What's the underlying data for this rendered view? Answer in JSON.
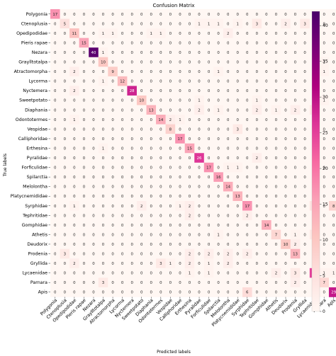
{
  "chart_data": {
    "type": "heatmap",
    "title": "Confusion Matrix",
    "xlabel": "Predicted labels",
    "ylabel": "True labels",
    "labels": [
      "Polygonia",
      "Ctenoplusia",
      "Opedipodidae",
      "Pieris rapae",
      "Nezara",
      "Graylltotalpa",
      "Atractomorpha",
      "Lycorma",
      "Nyctemera",
      "Sweetpotato",
      "Diaphania",
      "Odontotermes",
      "Vespidae",
      "Calliphoridae",
      "Erthesina",
      "Pyralidae",
      "Forficulidae",
      "Spilarctia",
      "Melolontha",
      "Platycnemididae",
      "Syrphidae",
      "Tephritidae",
      "Gomphidae",
      "Athetis",
      "Deudorix",
      "Prodenia",
      "Gryllida",
      "Lycaenidae",
      "Parnara",
      "Apis"
    ],
    "matrix": [
      [
        17,
        0,
        0,
        0,
        0,
        0,
        0,
        0,
        0,
        0,
        0,
        0,
        0,
        0,
        0,
        0,
        0,
        0,
        0,
        0,
        0,
        0,
        0,
        0,
        0,
        0,
        0,
        0,
        0,
        0
      ],
      [
        0,
        5,
        0,
        0,
        0,
        0,
        0,
        0,
        0,
        0,
        0,
        0,
        0,
        0,
        0,
        1,
        1,
        1,
        0,
        1,
        0,
        3,
        0,
        0,
        2,
        0,
        3,
        0,
        0,
        0
      ],
      [
        0,
        0,
        11,
        0,
        0,
        1,
        1,
        0,
        0,
        0,
        1,
        1,
        0,
        0,
        0,
        0,
        0,
        0,
        2,
        0,
        0,
        0,
        0,
        0,
        0,
        0,
        0,
        0,
        0,
        0
      ],
      [
        0,
        0,
        0,
        15,
        0,
        0,
        0,
        0,
        0,
        0,
        0,
        0,
        0,
        0,
        0,
        0,
        0,
        0,
        0,
        0,
        0,
        0,
        0,
        0,
        0,
        0,
        0,
        0,
        0,
        0
      ],
      [
        0,
        0,
        0,
        0,
        40,
        1,
        0,
        0,
        0,
        0,
        0,
        0,
        0,
        0,
        0,
        0,
        0,
        0,
        0,
        0,
        0,
        0,
        0,
        0,
        0,
        0,
        0,
        0,
        0,
        0
      ],
      [
        0,
        0,
        0,
        0,
        0,
        10,
        0,
        0,
        0,
        0,
        0,
        0,
        0,
        0,
        0,
        0,
        0,
        0,
        0,
        0,
        0,
        0,
        0,
        0,
        0,
        0,
        0,
        0,
        1,
        0
      ],
      [
        0,
        0,
        2,
        0,
        0,
        0,
        9,
        0,
        0,
        0,
        0,
        0,
        0,
        0,
        0,
        0,
        0,
        1,
        0,
        0,
        0,
        0,
        0,
        0,
        0,
        0,
        0,
        0,
        1,
        0
      ],
      [
        0,
        0,
        0,
        0,
        0,
        1,
        0,
        12,
        0,
        0,
        0,
        0,
        0,
        0,
        0,
        0,
        0,
        0,
        0,
        0,
        0,
        0,
        0,
        0,
        0,
        0,
        0,
        0,
        0,
        0
      ],
      [
        0,
        0,
        2,
        0,
        0,
        0,
        0,
        0,
        28,
        0,
        0,
        0,
        0,
        0,
        0,
        0,
        0,
        0,
        0,
        0,
        0,
        0,
        0,
        0,
        0,
        0,
        0,
        0,
        0,
        0
      ],
      [
        0,
        0,
        0,
        0,
        0,
        0,
        0,
        0,
        0,
        10,
        0,
        0,
        0,
        0,
        0,
        1,
        0,
        0,
        0,
        0,
        0,
        1,
        0,
        0,
        0,
        0,
        0,
        0,
        1,
        0
      ],
      [
        0,
        0,
        0,
        0,
        0,
        0,
        0,
        0,
        0,
        0,
        13,
        0,
        0,
        0,
        0,
        2,
        0,
        1,
        0,
        0,
        0,
        2,
        0,
        1,
        0,
        2,
        0,
        3,
        0,
        0
      ],
      [
        0,
        0,
        1,
        0,
        0,
        0,
        0,
        0,
        0,
        0,
        0,
        14,
        2,
        1,
        0,
        0,
        0,
        0,
        0,
        0,
        0,
        0,
        0,
        0,
        0,
        0,
        0,
        0,
        0,
        0
      ],
      [
        0,
        0,
        0,
        0,
        0,
        0,
        0,
        0,
        0,
        0,
        0,
        0,
        8,
        0,
        0,
        0,
        0,
        0,
        0,
        3,
        0,
        0,
        0,
        0,
        0,
        0,
        0,
        0,
        0,
        0
      ],
      [
        0,
        0,
        0,
        0,
        0,
        0,
        0,
        0,
        0,
        0,
        0,
        0,
        0,
        17,
        0,
        0,
        0,
        0,
        0,
        0,
        0,
        0,
        0,
        0,
        0,
        0,
        0,
        0,
        0,
        0
      ],
      [
        0,
        0,
        0,
        0,
        0,
        1,
        0,
        0,
        0,
        0,
        0,
        0,
        0,
        0,
        15,
        0,
        0,
        0,
        0,
        0,
        0,
        0,
        0,
        0,
        0,
        0,
        0,
        0,
        0,
        0
      ],
      [
        0,
        0,
        0,
        0,
        0,
        0,
        0,
        0,
        0,
        0,
        0,
        0,
        0,
        0,
        0,
        26,
        0,
        0,
        0,
        0,
        0,
        2,
        0,
        0,
        0,
        0,
        0,
        0,
        0,
        0
      ],
      [
        0,
        0,
        0,
        0,
        0,
        0,
        0,
        0,
        0,
        0,
        0,
        0,
        0,
        0,
        0,
        0,
        17,
        0,
        1,
        1,
        0,
        0,
        0,
        0,
        0,
        0,
        0,
        0,
        0,
        0
      ],
      [
        0,
        0,
        0,
        0,
        0,
        0,
        0,
        0,
        0,
        0,
        0,
        0,
        0,
        0,
        0,
        0,
        0,
        16,
        0,
        0,
        0,
        0,
        0,
        0,
        0,
        0,
        0,
        0,
        0,
        0
      ],
      [
        0,
        0,
        0,
        0,
        0,
        0,
        0,
        0,
        0,
        0,
        0,
        0,
        0,
        0,
        0,
        0,
        0,
        0,
        14,
        0,
        0,
        0,
        0,
        0,
        0,
        0,
        0,
        0,
        0,
        0
      ],
      [
        0,
        0,
        0,
        0,
        0,
        0,
        0,
        0,
        0,
        0,
        0,
        0,
        0,
        0,
        0,
        0,
        0,
        0,
        0,
        13,
        0,
        0,
        0,
        0,
        0,
        0,
        0,
        0,
        0,
        0
      ],
      [
        0,
        0,
        1,
        0,
        0,
        0,
        0,
        0,
        0,
        2,
        0,
        0,
        0,
        1,
        2,
        0,
        0,
        0,
        0,
        0,
        17,
        0,
        0,
        0,
        0,
        0,
        0,
        4,
        0,
        8
      ],
      [
        0,
        0,
        0,
        0,
        0,
        0,
        0,
        0,
        0,
        0,
        0,
        0,
        0,
        0,
        2,
        0,
        0,
        0,
        0,
        0,
        2,
        0,
        0,
        0,
        0,
        0,
        0,
        0,
        0,
        0
      ],
      [
        0,
        0,
        0,
        0,
        0,
        0,
        0,
        0,
        0,
        0,
        0,
        0,
        0,
        0,
        0,
        0,
        0,
        0,
        0,
        0,
        0,
        0,
        14,
        0,
        0,
        0,
        0,
        0,
        0,
        0
      ],
      [
        0,
        0,
        0,
        0,
        0,
        0,
        0,
        0,
        0,
        0,
        0,
        0,
        0,
        0,
        0,
        0,
        0,
        1,
        0,
        0,
        0,
        0,
        0,
        7,
        0,
        1,
        0,
        3,
        0,
        0
      ],
      [
        0,
        0,
        0,
        0,
        0,
        0,
        0,
        0,
        0,
        0,
        0,
        0,
        0,
        0,
        0,
        0,
        0,
        0,
        0,
        0,
        0,
        0,
        0,
        0,
        10,
        2,
        0,
        0,
        0,
        0
      ],
      [
        0,
        3,
        0,
        0,
        0,
        0,
        0,
        0,
        0,
        0,
        0,
        0,
        0,
        0,
        2,
        0,
        2,
        0,
        2,
        0,
        2,
        0,
        0,
        0,
        0,
        13,
        0,
        0,
        0,
        0
      ],
      [
        0,
        0,
        2,
        0,
        0,
        0,
        0,
        0,
        0,
        0,
        0,
        3,
        1,
        0,
        2,
        0,
        1,
        0,
        2,
        0,
        0,
        0,
        0,
        0,
        0,
        0,
        0,
        0,
        0,
        0
      ],
      [
        0,
        0,
        0,
        0,
        0,
        0,
        0,
        0,
        0,
        0,
        0,
        0,
        0,
        0,
        1,
        0,
        1,
        0,
        0,
        0,
        0,
        0,
        0,
        2,
        0,
        3,
        0,
        25,
        1,
        1
      ],
      [
        0,
        0,
        0,
        0,
        0,
        3,
        0,
        0,
        0,
        0,
        0,
        0,
        0,
        0,
        0,
        0,
        0,
        0,
        0,
        0,
        0,
        0,
        0,
        0,
        0,
        2,
        0,
        0,
        7,
        0
      ],
      [
        0,
        0,
        0,
        0,
        0,
        0,
        0,
        0,
        0,
        0,
        0,
        0,
        0,
        0,
        0,
        0,
        0,
        0,
        0,
        0,
        6,
        0,
        0,
        0,
        0,
        0,
        0,
        0,
        0,
        29
      ]
    ],
    "colorbar": {
      "ticks": [
        0,
        5,
        10,
        15,
        20,
        25,
        30,
        35,
        40
      ],
      "range": [
        0,
        42
      ]
    },
    "colormap": "RdPu"
  }
}
